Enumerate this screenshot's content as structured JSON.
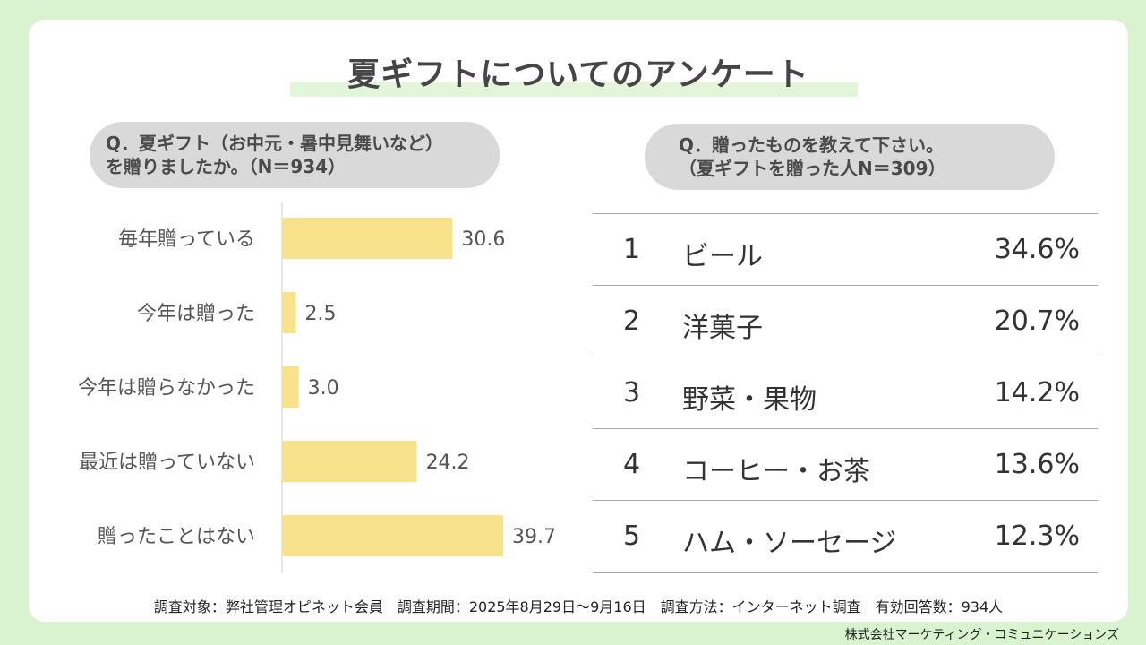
{
  "title": "夏ギフトについてのアンケート",
  "left_question": {
    "line1": "Q．夏ギフト（お中元・暑中見舞いなど）",
    "line2": "を贈りましたか。（N＝934）"
  },
  "right_question": {
    "line1": "Q．贈ったものを教えて下さい。",
    "line2": "（夏ギフトを贈った人N＝309）"
  },
  "chart_data": {
    "type": "bar",
    "orientation": "horizontal",
    "categories": [
      "毎年贈っている",
      "今年は贈った",
      "今年は贈らなかった",
      "最近は贈っていない",
      "贈ったことはない"
    ],
    "values": [
      30.6,
      2.5,
      3.0,
      24.2,
      39.7
    ],
    "value_labels": [
      "30.6",
      "2.5",
      "3.0",
      "24.2",
      "39.7"
    ],
    "xlim": [
      0,
      45
    ],
    "bar_color": "#f8e38c",
    "axis_color": "#d0d0d0"
  },
  "ranking": [
    {
      "rank": "1",
      "item": "ビール",
      "pct": "34.6%"
    },
    {
      "rank": "2",
      "item": "洋菓子",
      "pct": "20.7%"
    },
    {
      "rank": "3",
      "item": "野菜・果物",
      "pct": "14.2%"
    },
    {
      "rank": "4",
      "item": "コーヒー・お茶",
      "pct": "13.6%"
    },
    {
      "rank": "5",
      "item": "ハム・ソーセージ",
      "pct": "12.3%"
    }
  ],
  "footnote": "調査対象：弊社管理オピネット会員　調査期間：2025年8月29日～9月16日　調査方法：インターネット調査　有効回答数：934人",
  "company": "株式会社マーケティング・コミュニケーションズ",
  "colors": {
    "background": "#d9f3d0",
    "card": "#ffffff",
    "pill": "#d9d9d9",
    "title_highlight": "#e4f6da"
  }
}
